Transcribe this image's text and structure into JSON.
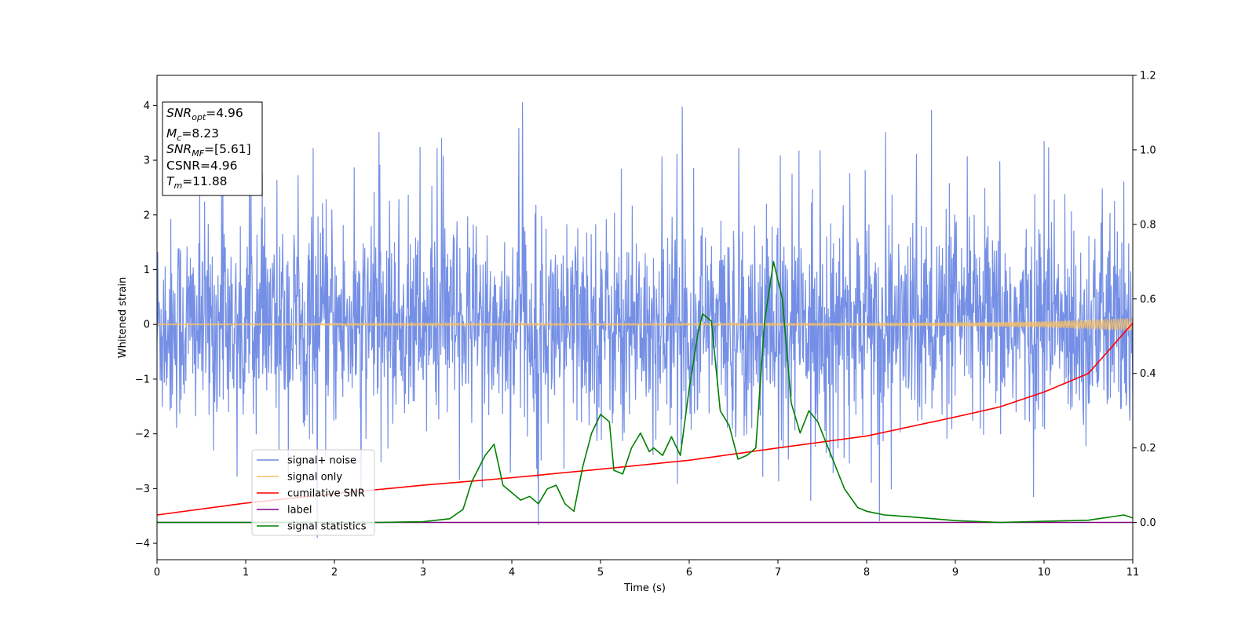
{
  "chart_data": {
    "type": "line",
    "xlabel": "Time (s)",
    "ylabel_left": "Whitened strain",
    "xlim": [
      0,
      11
    ],
    "ylim_left": [
      -4.3,
      4.55
    ],
    "ylim_right": [
      -0.1,
      1.2
    ],
    "x_ticks": [
      0,
      1,
      2,
      3,
      4,
      5,
      6,
      7,
      8,
      9,
      10,
      11
    ],
    "y_ticks_left": [
      -4,
      -3,
      -2,
      -1,
      0,
      1,
      2,
      3,
      4
    ],
    "y_ticks_right": [
      0.0,
      0.2,
      0.4,
      0.6,
      0.8,
      1.0
    ],
    "grid": false,
    "legend_position": "lower-left",
    "info_box": {
      "lines": [
        {
          "base": "SNR",
          "sub": "opt",
          "value": "=4.96"
        },
        {
          "base": "M",
          "sub": "c",
          "value": "=8.23"
        },
        {
          "base": "SNR",
          "sub": "MF",
          "value": "=[5.61]"
        },
        {
          "base": "CSNR",
          "sub": "",
          "value": "=4.96"
        },
        {
          "base": "T",
          "sub": "m",
          "value": "=11.88"
        }
      ]
    },
    "series": [
      {
        "name": "signal+ noise",
        "axis": "left",
        "color": "#6d89e4",
        "description_stats": {
          "envelope_typical_max": 2.4,
          "envelope_typical_min": -2.0,
          "peak_max": 4.2,
          "peak_min": -3.9
        }
      },
      {
        "name": "signal only",
        "axis": "left",
        "color": "#f5bf6a",
        "amplitude_profile": {
          "x": [
            0,
            6,
            8,
            9,
            10,
            10.5,
            11
          ],
          "amp": [
            0.008,
            0.015,
            0.02,
            0.03,
            0.055,
            0.08,
            0.12
          ]
        }
      },
      {
        "name": "cumilative SNR",
        "axis": "right",
        "color": "#ff0000",
        "x": [
          0,
          1,
          2,
          3,
          4,
          5,
          6,
          7,
          8,
          9,
          9.5,
          10,
          10.5,
          11
        ],
        "y": [
          0.02,
          0.052,
          0.077,
          0.1,
          0.12,
          0.143,
          0.167,
          0.2,
          0.232,
          0.283,
          0.31,
          0.35,
          0.4,
          0.535
        ]
      },
      {
        "name": "label",
        "axis": "right",
        "color": "#800080",
        "x": [
          0,
          11
        ],
        "y": [
          0.0,
          0.0
        ]
      },
      {
        "name": "signal statistics",
        "axis": "right",
        "color": "#008000",
        "x": [
          0,
          2.5,
          3.0,
          3.3,
          3.45,
          3.55,
          3.7,
          3.8,
          3.9,
          4.0,
          4.1,
          4.2,
          4.3,
          4.4,
          4.5,
          4.6,
          4.7,
          4.8,
          4.9,
          5.0,
          5.1,
          5.15,
          5.25,
          5.35,
          5.45,
          5.55,
          5.6,
          5.7,
          5.8,
          5.9,
          6.0,
          6.1,
          6.15,
          6.25,
          6.35,
          6.45,
          6.55,
          6.65,
          6.75,
          6.85,
          6.95,
          7.05,
          7.15,
          7.25,
          7.35,
          7.45,
          7.6,
          7.75,
          7.9,
          8.0,
          8.2,
          8.5,
          9.0,
          9.5,
          10.0,
          10.5,
          10.9,
          11.0
        ],
        "y": [
          0.0,
          0.0,
          0.002,
          0.01,
          0.035,
          0.11,
          0.18,
          0.21,
          0.1,
          0.08,
          0.06,
          0.07,
          0.05,
          0.09,
          0.1,
          0.05,
          0.03,
          0.15,
          0.24,
          0.29,
          0.27,
          0.14,
          0.13,
          0.2,
          0.24,
          0.19,
          0.2,
          0.18,
          0.23,
          0.18,
          0.36,
          0.51,
          0.56,
          0.54,
          0.3,
          0.26,
          0.17,
          0.18,
          0.2,
          0.54,
          0.7,
          0.6,
          0.32,
          0.24,
          0.3,
          0.27,
          0.18,
          0.09,
          0.04,
          0.03,
          0.02,
          0.015,
          0.005,
          0.0,
          0.003,
          0.006,
          0.02,
          0.012
        ]
      }
    ]
  }
}
